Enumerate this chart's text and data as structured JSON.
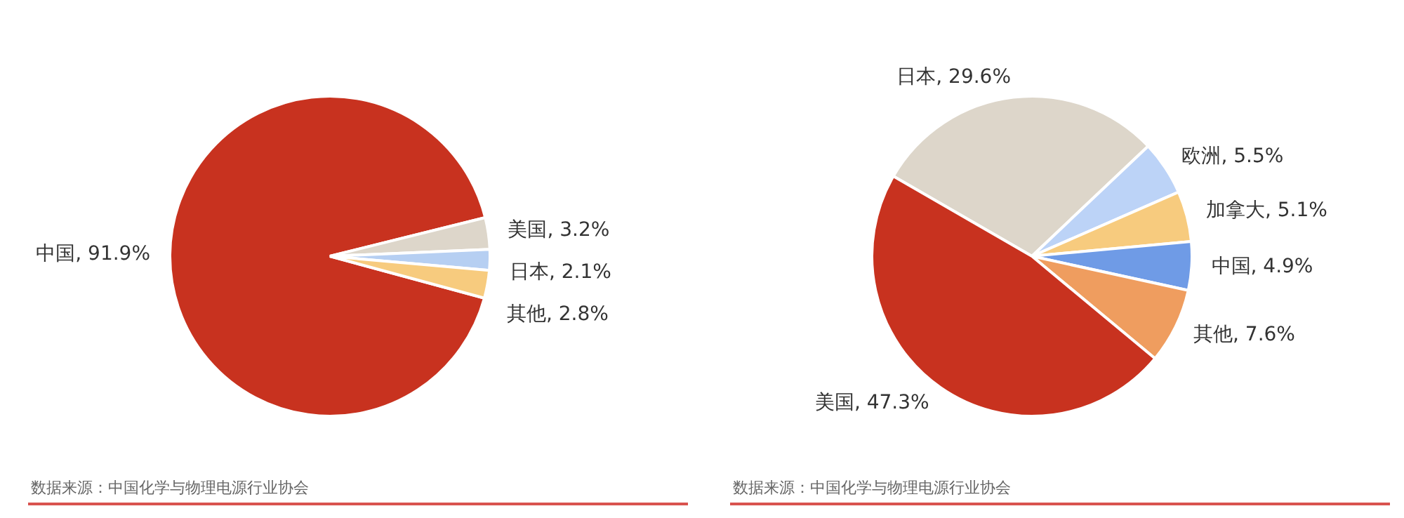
{
  "chart_data": [
    {
      "type": "pie",
      "categories": [
        "中国",
        "美国",
        "日本",
        "其他"
      ],
      "values": [
        91.9,
        3.2,
        2.1,
        2.8
      ],
      "value_labels": [
        "91.9%",
        "3.2%",
        "2.1%",
        "2.8%"
      ],
      "colors": [
        "#c8321f",
        "#ddd6ca",
        "#b6cff2",
        "#f7cb7e"
      ],
      "legend": false,
      "annotations": [
        "数据来源：中国化学与物理电源行业协会"
      ]
    },
    {
      "type": "pie",
      "categories": [
        "日本",
        "欧洲",
        "加拿大",
        "中国",
        "其他",
        "美国"
      ],
      "values": [
        29.6,
        5.5,
        5.1,
        4.9,
        7.6,
        47.3
      ],
      "value_labels": [
        "29.6%",
        "5.5%",
        "5.1%",
        "4.9%",
        "7.6%",
        "47.3%"
      ],
      "colors": [
        "#ddd6ca",
        "#bcd3f7",
        "#f7cb7e",
        "#6f9be6",
        "#ef9d5f",
        "#c8321f"
      ],
      "legend": false,
      "annotations": [
        "数据来源：中国化学与物理电源行业协会"
      ]
    }
  ]
}
